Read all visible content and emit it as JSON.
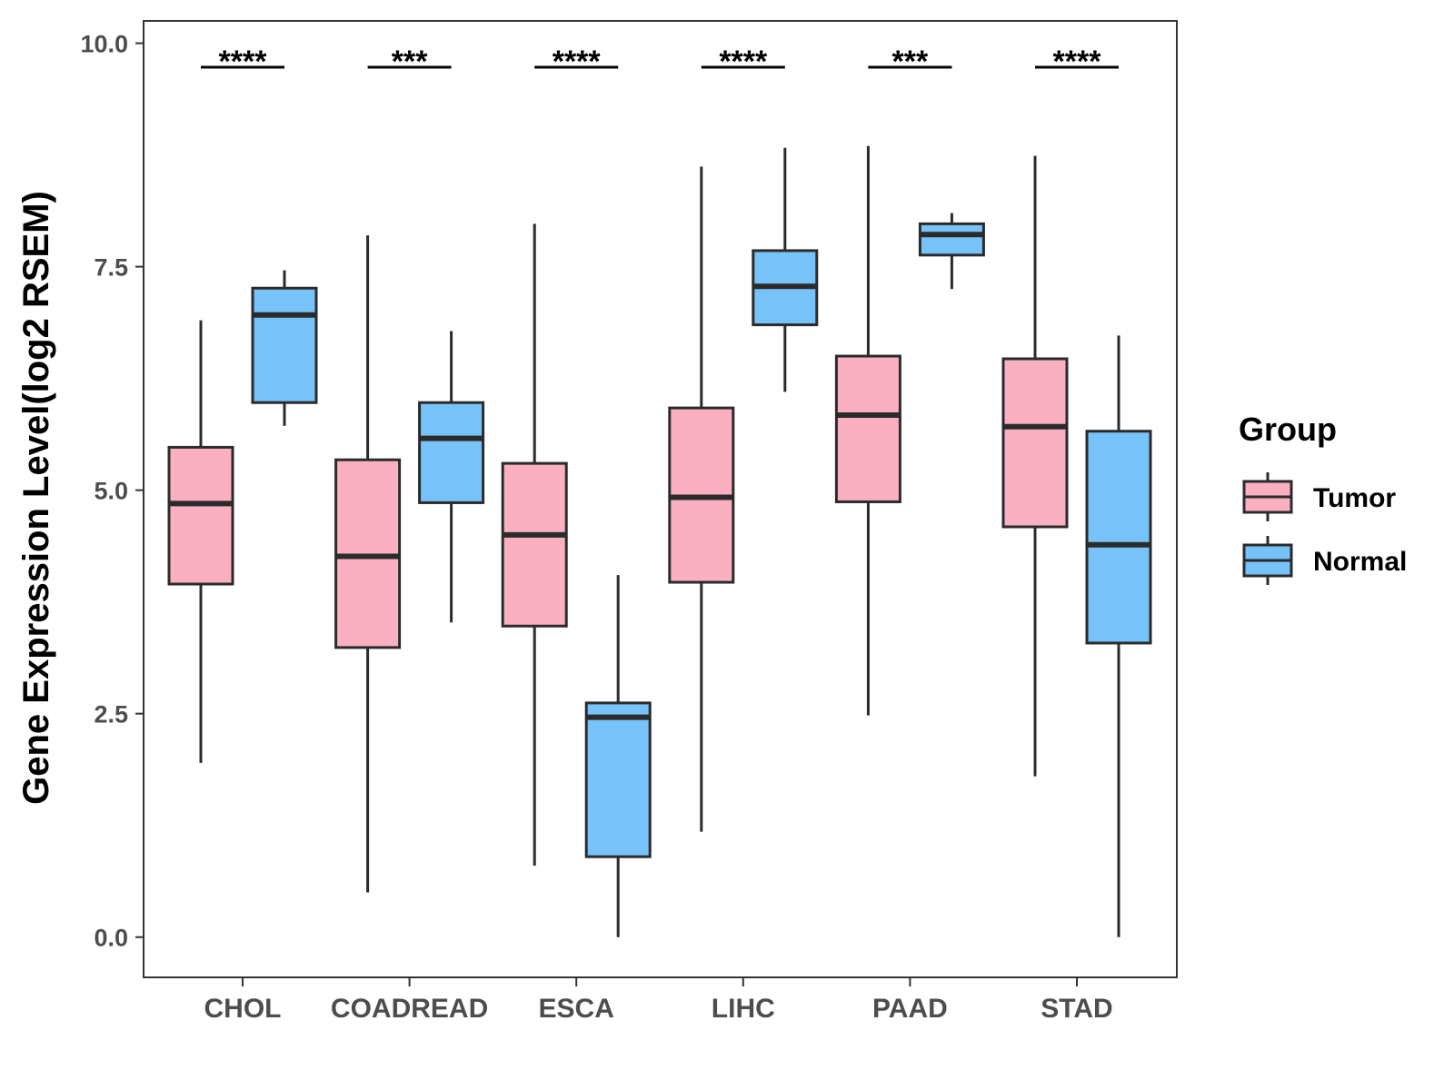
{
  "chart_data": {
    "type": "boxplot",
    "title": "",
    "xlabel": "",
    "ylabel": "Gene Expression Level(log2 RSEM)",
    "ylim": [
      -0.45,
      10.25
    ],
    "yticks": [
      0.0,
      2.5,
      5.0,
      7.5,
      10.0
    ],
    "ytick_labels": [
      "0.0",
      "2.5",
      "5.0",
      "7.5",
      "10.0"
    ],
    "grid": false,
    "categories": [
      "CHOL",
      "COADREAD",
      "ESCA",
      "LIHC",
      "PAAD",
      "STAD"
    ],
    "significance": [
      "****",
      "***",
      "****",
      "****",
      "***",
      "****"
    ],
    "legend": {
      "title": "Group",
      "position": "right",
      "entries": [
        "Tumor",
        "Normal"
      ]
    },
    "series": [
      {
        "name": "Tumor",
        "color": "#FBB0C1",
        "boxes": [
          {
            "whisker_low": 1.95,
            "q1": 3.95,
            "median": 4.85,
            "q3": 5.48,
            "whisker_high": 6.9
          },
          {
            "whisker_low": 0.5,
            "q1": 3.24,
            "median": 4.26,
            "q3": 5.34,
            "whisker_high": 7.85
          },
          {
            "whisker_low": 0.8,
            "q1": 3.48,
            "median": 4.5,
            "q3": 5.3,
            "whisker_high": 7.98
          },
          {
            "whisker_low": 1.18,
            "q1": 3.97,
            "median": 4.92,
            "q3": 5.92,
            "whisker_high": 8.62
          },
          {
            "whisker_low": 2.48,
            "q1": 4.87,
            "median": 5.84,
            "q3": 6.5,
            "whisker_high": 8.85
          },
          {
            "whisker_low": 1.8,
            "q1": 4.59,
            "median": 5.71,
            "q3": 6.47,
            "whisker_high": 8.74
          }
        ]
      },
      {
        "name": "Normal",
        "color": "#77C2F8",
        "boxes": [
          {
            "whisker_low": 5.72,
            "q1": 5.98,
            "median": 6.96,
            "q3": 7.26,
            "whisker_high": 7.46
          },
          {
            "whisker_low": 3.52,
            "q1": 4.86,
            "median": 5.58,
            "q3": 5.98,
            "whisker_high": 6.78
          },
          {
            "whisker_low": 0.0,
            "q1": 0.9,
            "median": 2.46,
            "q3": 2.62,
            "whisker_high": 4.05
          },
          {
            "whisker_low": 6.1,
            "q1": 6.85,
            "median": 7.28,
            "q3": 7.68,
            "whisker_high": 8.83
          },
          {
            "whisker_low": 7.25,
            "q1": 7.63,
            "median": 7.86,
            "q3": 7.98,
            "whisker_high": 8.1
          },
          {
            "whisker_low": 0.0,
            "q1": 3.29,
            "median": 4.39,
            "q3": 5.66,
            "whisker_high": 6.73
          }
        ]
      }
    ]
  }
}
